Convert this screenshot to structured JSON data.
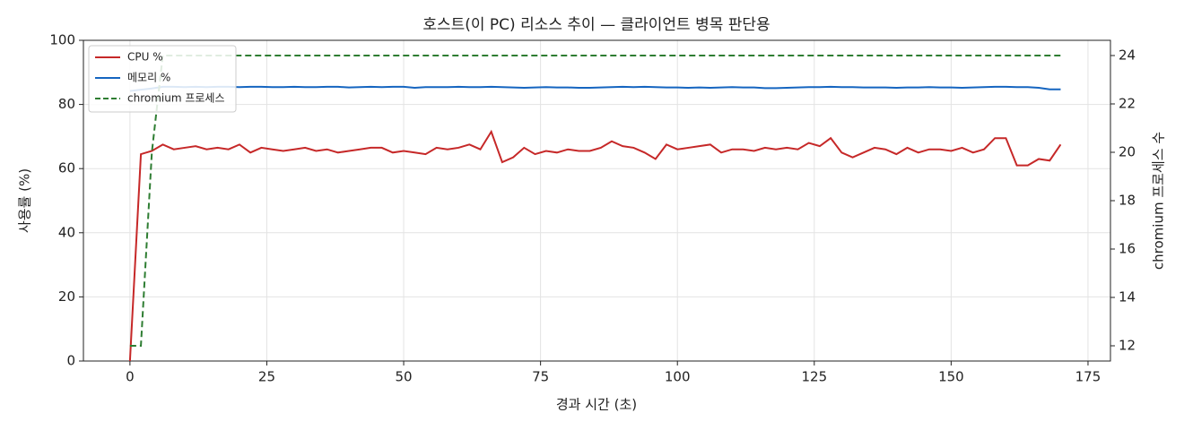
{
  "chart_data": {
    "type": "line",
    "title": "호스트(이 PC) 리소스 추이 — 클라이언트 병목 판단용",
    "x_label": "경과 시간 (초)",
    "y_label": "사용률 (%)",
    "y2_label": "chromium 프로세스 수",
    "x": [
      0,
      2,
      4,
      6,
      8,
      10,
      12,
      14,
      16,
      18,
      20,
      22,
      24,
      26,
      28,
      30,
      32,
      34,
      36,
      38,
      40,
      42,
      44,
      46,
      48,
      50,
      52,
      54,
      56,
      58,
      60,
      62,
      64,
      66,
      68,
      70,
      72,
      74,
      76,
      78,
      80,
      82,
      84,
      86,
      88,
      90,
      92,
      94,
      96,
      98,
      100,
      102,
      104,
      106,
      108,
      110,
      112,
      114,
      116,
      118,
      120,
      122,
      124,
      126,
      128,
      130,
      132,
      134,
      136,
      138,
      140,
      142,
      144,
      146,
      148,
      150,
      152,
      154,
      156,
      158,
      160,
      162,
      164,
      166,
      168,
      170
    ],
    "series": [
      {
        "name": "CPU %",
        "color": "#c62828",
        "dash": "solid",
        "values": [
          0,
          64.5,
          65.5,
          67.5,
          66,
          66.5,
          67,
          66,
          66.5,
          66,
          67.5,
          65,
          66.5,
          66,
          65.5,
          66,
          66.5,
          65.5,
          66,
          65,
          65.5,
          66,
          66.5,
          66.5,
          65,
          65.5,
          65,
          64.5,
          66.5,
          66,
          66.5,
          67.5,
          66,
          71.5,
          62,
          63.5,
          66.5,
          64.5,
          65.5,
          65,
          66,
          65.5,
          65.5,
          66.5,
          68.5,
          67,
          66.5,
          65,
          63,
          67.5,
          66,
          66.5,
          67,
          67.5,
          65,
          66,
          66,
          65.5,
          66.5,
          66,
          66.5,
          66,
          68,
          67,
          69.5,
          65,
          63.5,
          65,
          66.5,
          66,
          64.5,
          66.5,
          65,
          66,
          66,
          65.5,
          66.5,
          65,
          66,
          69.5,
          69.5,
          61,
          61,
          63,
          62.5,
          67.5
        ]
      },
      {
        "name": "메모리 %",
        "color": "#1565c0",
        "dash": "solid",
        "values": [
          84.2,
          84.6,
          85.0,
          85.5,
          85.5,
          85.4,
          85.5,
          85.4,
          85.5,
          85.5,
          85.4,
          85.5,
          85.5,
          85.4,
          85.4,
          85.5,
          85.4,
          85.4,
          85.5,
          85.5,
          85.3,
          85.4,
          85.5,
          85.4,
          85.5,
          85.5,
          85.2,
          85.4,
          85.4,
          85.4,
          85.5,
          85.4,
          85.4,
          85.5,
          85.4,
          85.3,
          85.2,
          85.3,
          85.4,
          85.3,
          85.3,
          85.2,
          85.2,
          85.3,
          85.4,
          85.5,
          85.4,
          85.5,
          85.4,
          85.3,
          85.3,
          85.2,
          85.3,
          85.2,
          85.3,
          85.4,
          85.3,
          85.3,
          85.1,
          85.1,
          85.2,
          85.3,
          85.4,
          85.4,
          85.5,
          85.4,
          85.4,
          85.3,
          85.3,
          85.3,
          85.2,
          85.3,
          85.3,
          85.4,
          85.3,
          85.3,
          85.2,
          85.3,
          85.4,
          85.5,
          85.5,
          85.4,
          85.4,
          85.2,
          84.7,
          84.7
        ]
      },
      {
        "name": "chromium 프로세스",
        "color": "#2e7d32",
        "dash": "dashed",
        "axis": "y2",
        "values": [
          12,
          12,
          20,
          24,
          24,
          24,
          24,
          24,
          24,
          24,
          24,
          24,
          24,
          24,
          24,
          24,
          24,
          24,
          24,
          24,
          24,
          24,
          24,
          24,
          24,
          24,
          24,
          24,
          24,
          24,
          24,
          24,
          24,
          24,
          24,
          24,
          24,
          24,
          24,
          24,
          24,
          24,
          24,
          24,
          24,
          24,
          24,
          24,
          24,
          24,
          24,
          24,
          24,
          24,
          24,
          24,
          24,
          24,
          24,
          24,
          24,
          24,
          24,
          24,
          24,
          24,
          24,
          24,
          24,
          24,
          24,
          24,
          24,
          24,
          24,
          24,
          24,
          24,
          24,
          24,
          24,
          24,
          24,
          24,
          24,
          24
        ]
      }
    ],
    "xlim": [
      -8.5,
      179.1
    ],
    "xticks": [
      0,
      25,
      50,
      75,
      100,
      125,
      150,
      175
    ],
    "ylim": [
      0,
      100
    ],
    "yticks": [
      0,
      20,
      40,
      60,
      80,
      100
    ],
    "y2lim": [
      11.37,
      24.63
    ],
    "y2ticks": [
      12,
      14,
      16,
      18,
      20,
      22,
      24
    ],
    "grid": true,
    "legend": "upper left"
  }
}
